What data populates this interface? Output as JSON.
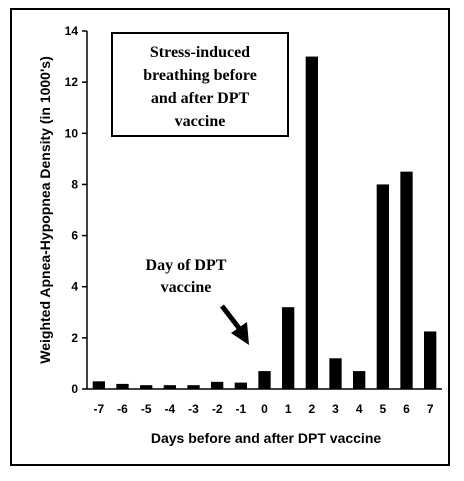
{
  "chart_data": {
    "type": "bar",
    "categories": [
      "-7",
      "-6",
      "-5",
      "-4",
      "-3",
      "-2",
      "-1",
      "0",
      "1",
      "2",
      "3",
      "4",
      "5",
      "6",
      "7"
    ],
    "values": [
      0.3,
      0.2,
      0.15,
      0.15,
      0.15,
      0.28,
      0.25,
      0.7,
      3.2,
      13.0,
      1.2,
      0.7,
      8.0,
      8.5,
      2.25
    ],
    "ylim": [
      0,
      14
    ],
    "yticks": [
      "0",
      "2",
      "4",
      "6",
      "8",
      "10",
      "12",
      "14"
    ],
    "xlabel": "Days before and after DPT vaccine",
    "ylabel": "Weighted Apnea-Hypopnea Density (in 1000's)",
    "bar_color": "#000000",
    "grid": false,
    "annotations": {
      "box_lines": [
        "Stress-induced",
        "breathing before",
        "and after DPT",
        "vaccine"
      ],
      "arrow_lines": [
        "Day of DPT",
        "vaccine"
      ]
    }
  }
}
